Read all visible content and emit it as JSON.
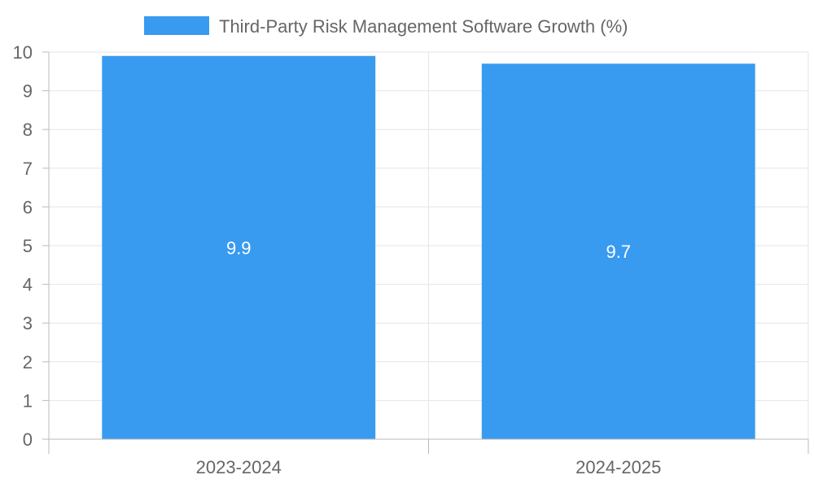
{
  "chart_data": {
    "type": "bar",
    "categories": [
      "2023-2024",
      "2024-2025"
    ],
    "series": [
      {
        "name": "Third-Party Risk Management Software Growth (%)",
        "values": [
          9.9,
          9.7
        ],
        "color": "#389BF0"
      }
    ],
    "ylim": [
      0,
      10
    ],
    "yticks": [
      0,
      1,
      2,
      3,
      4,
      5,
      6,
      7,
      8,
      9,
      10
    ],
    "grid": true,
    "legend_position": "top-center",
    "data_labels": [
      "9.9",
      "9.7"
    ]
  }
}
